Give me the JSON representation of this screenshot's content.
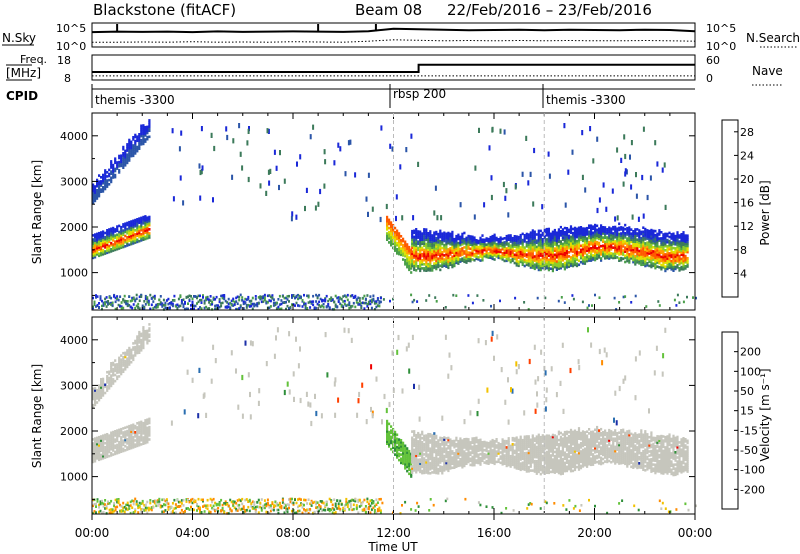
{
  "header": {
    "station": "Blackstone (fitACF)",
    "beam": "Beam 08",
    "dates": "22/Feb/2016 – 23/Feb/2016"
  },
  "colors": {
    "power": [
      "#1a28d8",
      "#2b55a8",
      "#3c7a5a",
      "#4a9f4a",
      "#8ccd2a",
      "#e0e000",
      "#ffa000",
      "#ff5a00",
      "#ee0000"
    ],
    "velocity": [
      "#1b2fa8",
      "#2a6eb0",
      "#2f8f3a",
      "#63c23a",
      "#c6c6bd",
      "#f2c200",
      "#ff8c00",
      "#ff4000",
      "#ee0000"
    ],
    "ground_scatter": "#c6c6bd"
  },
  "chart_data": [
    {
      "type": "line",
      "name": "noise-panel",
      "left_label": "N.Sky",
      "right_label": "N.Search",
      "left_ticks": [
        "10^5",
        "10^0"
      ],
      "right_ticks": [
        "10^5",
        "10^0"
      ],
      "series": [
        {
          "values_solid": [
            3.1,
            3.2,
            3.15,
            3.2,
            3.1,
            3.25,
            3.15,
            3.2,
            3.25,
            3.2,
            3.15,
            3.3,
            3.8,
            3.7,
            3.6,
            3.5,
            3.55,
            3.6,
            3.5,
            3.6,
            3.55,
            3.5,
            3.6,
            3.55,
            3.3
          ]
        },
        {
          "values_dotted": [
            1.0,
            1.0,
            1.05,
            1.0,
            1.1,
            1.0,
            1.05,
            1.0,
            1.1,
            1.05,
            1.0,
            1.2,
            1.5,
            1.4,
            1.3,
            1.35,
            1.3,
            1.35,
            1.3,
            1.35,
            1.3,
            1.3,
            1.35,
            1.3,
            1.2
          ]
        }
      ]
    },
    {
      "type": "line",
      "name": "frequency-panel",
      "left_label_1": "Freq.",
      "left_label_2": "[MHz]",
      "right_label": "Nave",
      "left_ticks": [
        "18",
        "8"
      ],
      "right_ticks": [
        "60",
        "0"
      ],
      "freq_steps": [
        {
          "from_hour": 0,
          "to_hour": 13,
          "value": 10.5
        },
        {
          "from_hour": 13,
          "to_hour": 24,
          "value": 14.5
        }
      ],
      "nave_level": 10
    },
    {
      "type": "table",
      "name": "cpid-bar",
      "label": "CPID",
      "segments": [
        {
          "start_hour": 0,
          "label": "themis -3300"
        },
        {
          "start_hour": 12,
          "label": "rbsp 200"
        },
        {
          "start_hour": 18,
          "label": "themis -3300"
        }
      ]
    },
    {
      "type": "heatmap",
      "name": "power-panel",
      "ylabel": "Slant Range [km]",
      "yticks": [
        1000,
        2000,
        3000,
        4000
      ],
      "ylim": [
        180,
        4500
      ],
      "xlim": [
        0,
        24
      ],
      "colorbar_label": "Power [dB]",
      "colorbar_ticks": [
        4,
        8,
        12,
        16,
        20,
        24,
        28
      ],
      "colorbar_range": [
        0,
        30
      ],
      "bands": [
        {
          "start_hour": 0,
          "end_hour": 2.3,
          "range_start": 1350,
          "range_end": 1850,
          "range_slope_per_hour": 200
        },
        {
          "start_hour": 0,
          "end_hour": 2.3,
          "range_start": 2550,
          "range_end": 2900,
          "range_slope_per_hour": 650
        },
        {
          "start_hour": 11.7,
          "end_hour": 12.7,
          "range_start": 1950,
          "range_end": 1200,
          "range_slope_per_hour": -750
        },
        {
          "start_hour": 12.7,
          "end_hour": 23.7,
          "range_start": 1250,
          "range_end": 1950,
          "range_slope_per_hour": 0
        }
      ]
    },
    {
      "type": "heatmap",
      "name": "velocity-panel",
      "ylabel": "Slant Range [km]",
      "yticks": [
        1000,
        2000,
        3000,
        4000
      ],
      "ylim": [
        180,
        4500
      ],
      "xlim": [
        0,
        24
      ],
      "xticks": [
        "00:00",
        "04:00",
        "08:00",
        "12:00",
        "16:00",
        "20:00",
        "00:00"
      ],
      "xlabel": "Time UT",
      "colorbar_label": "Velocity [m s⁻¹]",
      "colorbar_ticks": [
        200,
        100,
        50,
        15,
        -15,
        -50,
        -100,
        -200
      ],
      "colorbar_range": [
        -250,
        250
      ]
    }
  ]
}
